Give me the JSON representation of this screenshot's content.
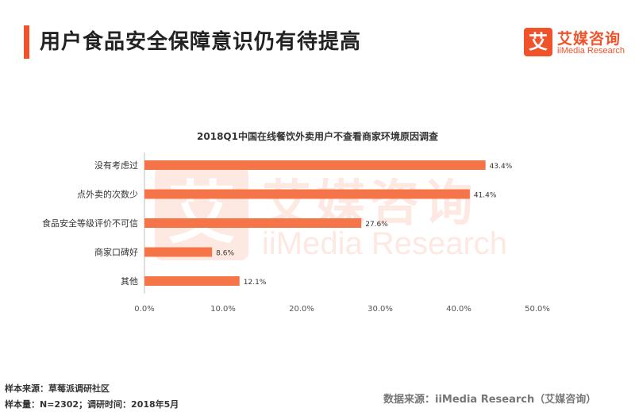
{
  "header": {
    "title": "用户食品安全保障意识仍有待提高",
    "logo_mark": "艾",
    "logo_cn": "艾媒咨询",
    "logo_en": "iiMedia Research"
  },
  "watermark": {
    "mark": "艾",
    "cn": "艾媒咨询",
    "en": "iiMedia Research"
  },
  "chart_data": {
    "type": "bar",
    "orientation": "horizontal",
    "title": "2018Q1中国在线餐饮外卖用户不查看商家环境原因调查",
    "categories": [
      "没有考虑过",
      "点外卖的次数少",
      "食品安全等级评价不可信",
      "商家口碑好",
      "其他"
    ],
    "values": [
      43.4,
      41.4,
      27.6,
      8.6,
      12.1
    ],
    "value_labels": [
      "43.4%",
      "41.4%",
      "27.6%",
      "8.6%",
      "12.1%"
    ],
    "xlim": [
      0,
      50
    ],
    "xticks": [
      0,
      10,
      20,
      30,
      40,
      50
    ],
    "xtick_labels": [
      "0.0%",
      "10.0%",
      "20.0%",
      "30.0%",
      "40.0%",
      "50.0%"
    ],
    "bar_color": "#f57548",
    "grid": false,
    "legend": "none"
  },
  "footer": {
    "sample_source": "样本来源：草莓派调研社区",
    "sample_size": "样本量：N=2302；调研时间：2018年5月",
    "data_source": "数据来源：iiMedia Research（艾媒咨询）"
  }
}
